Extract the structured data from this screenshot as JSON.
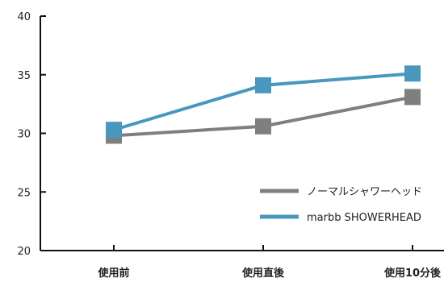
{
  "chart_data": {
    "type": "line",
    "categories": [
      "使用前",
      "使用直後",
      "使用10分後"
    ],
    "series": [
      {
        "name": "ノーマルシャワーヘッド",
        "values": [
          29.8,
          30.6,
          33.1
        ],
        "color": "#7f7f7f"
      },
      {
        "name": "marbb SHOWERHEAD",
        "values": [
          30.3,
          34.1,
          35.1
        ],
        "color": "#4a97bd"
      }
    ],
    "ylim": [
      20,
      40
    ],
    "yticks": [
      "20",
      "25",
      "30",
      "35",
      "40"
    ],
    "title": "",
    "xlabel": "",
    "ylabel": "",
    "grid": false,
    "legend": "bottom-right",
    "marker": "square"
  }
}
